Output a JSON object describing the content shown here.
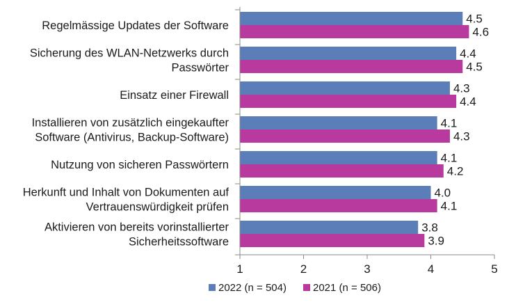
{
  "chart_data": {
    "type": "bar",
    "orientation": "horizontal",
    "categories": [
      [
        "Regelmässige Updates der Software"
      ],
      [
        "Sicherung des WLAN-Netzwerks durch",
        "Passwörter"
      ],
      [
        "Einsatz einer Firewall"
      ],
      [
        "Installieren von zusätzlich eingekaufter",
        "Software (Antivirus, Backup-Software)"
      ],
      [
        "Nutzung von sicheren Passwörtern"
      ],
      [
        "Herkunft und Inhalt von Dokumenten auf",
        "Vertrauenswürdigkeit prüfen"
      ],
      [
        "Aktivieren von bereits vorinstallierter",
        "Sicherheitssoftware"
      ]
    ],
    "series": [
      {
        "name": "2022 (n = 504)",
        "color": "#5B7DB8",
        "values": [
          4.5,
          4.4,
          4.3,
          4.1,
          4.1,
          4.0,
          3.8
        ],
        "labels": [
          "4.5",
          "4.4",
          "4.3",
          "4.1",
          "4.1",
          "4.0",
          "3.8"
        ]
      },
      {
        "name": "2021 (n = 506)",
        "color": "#B93A9E",
        "values": [
          4.6,
          4.5,
          4.4,
          4.3,
          4.2,
          4.1,
          3.9
        ],
        "labels": [
          "4.6",
          "4.5",
          "4.4",
          "4.3",
          "4.2",
          "4.1",
          "3.9"
        ]
      }
    ],
    "xlim": [
      1,
      5
    ],
    "xticks": [
      "1",
      "2",
      "3",
      "4",
      "5"
    ],
    "title": "",
    "xlabel": "",
    "ylabel": "",
    "grid": false,
    "legend_position": "bottom"
  }
}
